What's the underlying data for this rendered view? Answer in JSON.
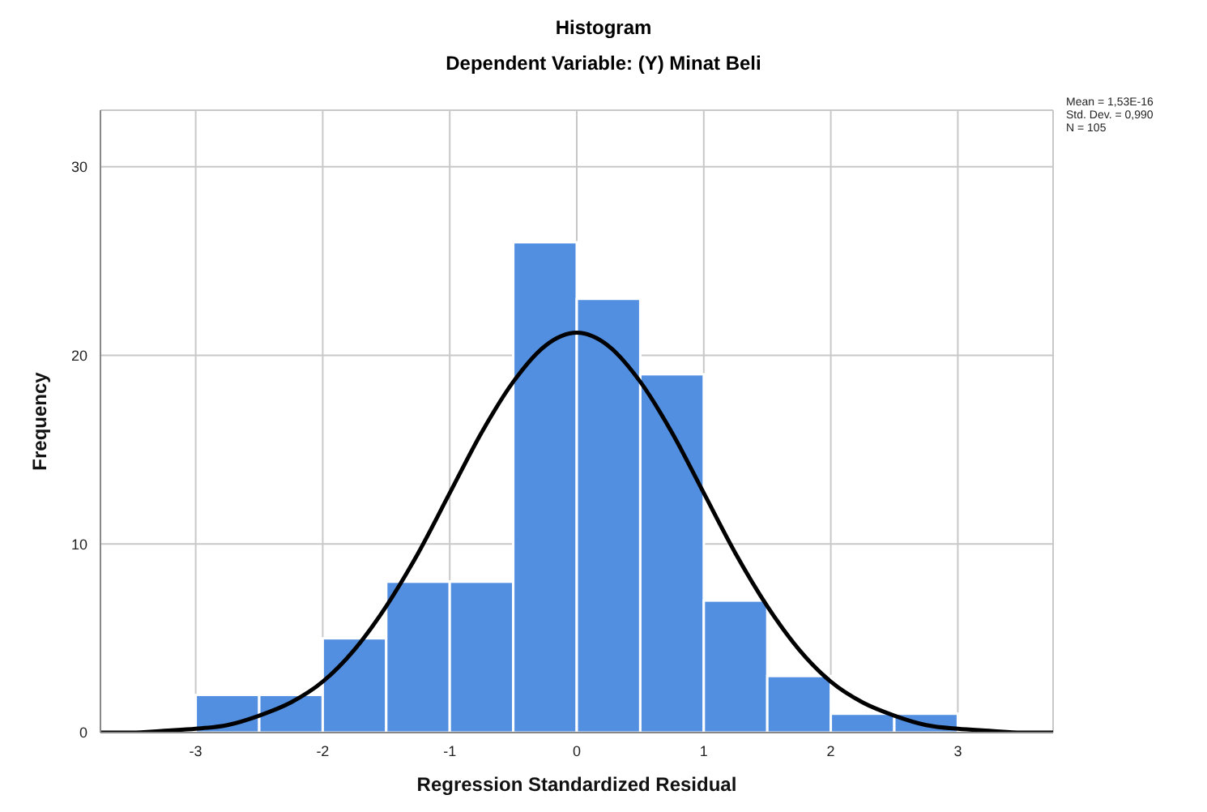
{
  "chart_data": {
    "type": "histogram",
    "title": "Histogram",
    "subtitle": "Dependent Variable: (Y) Minat Beli",
    "xlabel": "Regression Standardized Residual",
    "ylabel": "Frequency",
    "bins": [
      -3,
      -2.5,
      -2,
      -1.5,
      -1,
      -0.5,
      0,
      0.5,
      1,
      1.5,
      2,
      2.5,
      3
    ],
    "values": [
      2,
      2,
      5,
      8,
      8,
      26,
      23,
      19,
      7,
      3,
      1,
      1
    ],
    "color": "#528fe0",
    "series": [
      {
        "type": "line",
        "color": "#000000",
        "x": [
          -3.75,
          -3.5,
          -3.25,
          -3,
          -2.75,
          -2.5,
          -2.25,
          -2,
          -1.75,
          -1.5,
          -1.25,
          -1,
          -0.75,
          -0.5,
          -0.25,
          0,
          0.25,
          0.5,
          0.75,
          1,
          1.25,
          1.5,
          1.75,
          2,
          2.25,
          2.5,
          2.75,
          3,
          3.25,
          3.5,
          3.75
        ],
        "values": [
          0,
          0,
          0.1,
          0.2,
          0.4,
          0.9,
          1.6,
          2.7,
          4.4,
          6.7,
          9.5,
          12.7,
          15.9,
          18.6,
          20.5,
          21.2,
          20.5,
          18.6,
          15.9,
          12.7,
          9.5,
          6.7,
          4.4,
          2.7,
          1.6,
          0.9,
          0.4,
          0.2,
          0.1,
          0,
          0
        ]
      }
    ],
    "xlim": [
      -3.75,
      3.75
    ],
    "xticks": [
      -3,
      -2,
      -1,
      0,
      1,
      2,
      3
    ],
    "ylim": [
      0,
      33
    ],
    "yticks": [
      0,
      10,
      20,
      30
    ],
    "grid": true,
    "marker": "none",
    "annotations": [
      "Mean = 1,53E-16",
      "Std. Dev. = 0,990",
      "N = 105"
    ]
  }
}
